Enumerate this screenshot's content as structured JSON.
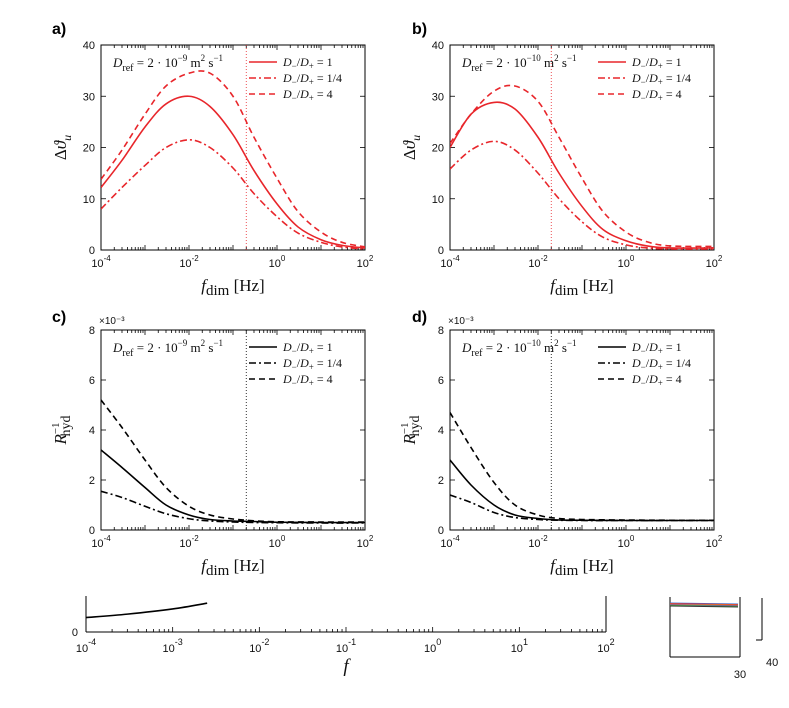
{
  "chart_data": [
    {
      "panel": "a)",
      "type": "line",
      "xscale": "log",
      "xlim": [
        0.0001,
        100
      ],
      "ylim": [
        0,
        40
      ],
      "yticks": [
        "0",
        "10",
        "20",
        "30",
        "40"
      ],
      "xlabel": "f_dim [Hz]",
      "ylabel": "Δϑ_u",
      "ref_label": "D_ref = 2·10⁻⁹ m² s⁻¹",
      "vline_x": 0.2,
      "color": "#e8262b",
      "series": [
        {
          "name": "D−/D+ = 1",
          "style": "solid",
          "x": [
            0.0001,
            0.0003,
            0.001,
            0.003,
            0.01,
            0.03,
            0.1,
            0.3,
            1,
            3,
            10,
            30,
            100
          ],
          "y": [
            12.2,
            17.5,
            24.0,
            28.5,
            30.0,
            28.0,
            22.5,
            15.5,
            9.0,
            4.5,
            2.0,
            0.9,
            0.4
          ]
        },
        {
          "name": "D−/D+ = 1/4",
          "style": "dashdot",
          "x": [
            0.0001,
            0.0003,
            0.001,
            0.003,
            0.01,
            0.03,
            0.1,
            0.3,
            1,
            3,
            10,
            30,
            100
          ],
          "y": [
            8.0,
            12.2,
            16.5,
            20.0,
            21.5,
            20.0,
            16.0,
            11.0,
            6.5,
            3.3,
            1.5,
            0.6,
            0.2
          ]
        },
        {
          "name": "D−/D+ = 4",
          "style": "dashed",
          "x": [
            0.0001,
            0.0003,
            0.001,
            0.003,
            0.01,
            0.03,
            0.1,
            0.3,
            1,
            3,
            10,
            30,
            100
          ],
          "y": [
            13.8,
            19.5,
            26.5,
            32.0,
            34.5,
            34.5,
            30.0,
            22.0,
            14.0,
            7.5,
            3.5,
            1.5,
            0.6
          ]
        }
      ]
    },
    {
      "panel": "b)",
      "type": "line",
      "xscale": "log",
      "xlim": [
        0.0001,
        100
      ],
      "ylim": [
        0,
        40
      ],
      "yticks": [
        "0",
        "10",
        "20",
        "30",
        "40"
      ],
      "xlabel": "f_dim [Hz]",
      "ylabel": "Δϑ_u",
      "ref_label": "D_ref = 2·10⁻¹⁰ m² s⁻¹",
      "vline_x": 0.02,
      "color": "#e8262b",
      "series": [
        {
          "name": "D−/D+ = 1",
          "style": "solid",
          "x": [
            0.0001,
            0.0003,
            0.001,
            0.003,
            0.01,
            0.03,
            0.1,
            0.3,
            1,
            3,
            10,
            100
          ],
          "y": [
            20.0,
            26.5,
            28.8,
            27.5,
            22.0,
            15.0,
            8.5,
            4.0,
            1.8,
            0.8,
            0.4,
            0.4
          ]
        },
        {
          "name": "D−/D+ = 1/4",
          "style": "dashdot",
          "x": [
            0.0001,
            0.0003,
            0.001,
            0.003,
            0.01,
            0.03,
            0.1,
            0.3,
            1,
            3,
            10,
            100
          ],
          "y": [
            15.8,
            19.5,
            21.2,
            19.5,
            15.0,
            10.0,
            5.5,
            2.5,
            1.0,
            0.4,
            0.2,
            0.2
          ]
        },
        {
          "name": "D−/D+ = 4",
          "style": "dashed",
          "x": [
            0.0001,
            0.0003,
            0.001,
            0.003,
            0.01,
            0.03,
            0.1,
            0.3,
            1,
            3,
            10,
            100
          ],
          "y": [
            20.8,
            26.5,
            31.0,
            32.0,
            29.0,
            22.0,
            14.0,
            7.5,
            3.5,
            1.6,
            0.8,
            0.7
          ]
        }
      ]
    },
    {
      "panel": "c)",
      "type": "line",
      "xscale": "log",
      "xlim": [
        0.0001,
        100
      ],
      "ylim": [
        0,
        0.008
      ],
      "yticks": [
        "0",
        "2",
        "4",
        "6",
        "8"
      ],
      "y_multiplier": "×10⁻³",
      "xlabel": "f_dim [Hz]",
      "ylabel": "R⁻¹_hyd",
      "ref_label": "D_ref = 2·10⁻⁹ m² s⁻¹",
      "vline_x": 0.2,
      "color": "#000000",
      "series": [
        {
          "name": "D−/D+ = 1",
          "style": "solid",
          "x": [
            0.0001,
            0.0003,
            0.001,
            0.003,
            0.01,
            0.03,
            0.1,
            0.3,
            1,
            10,
            100
          ],
          "y": [
            0.0032,
            0.0025,
            0.0017,
            0.001,
            0.0006,
            0.00042,
            0.00036,
            0.00034,
            0.00031,
            0.0003,
            0.0003
          ]
        },
        {
          "name": "D−/D+ = 1/4",
          "style": "dashdot",
          "x": [
            0.0001,
            0.0003,
            0.001,
            0.003,
            0.01,
            0.03,
            0.1,
            0.3,
            1,
            10,
            100
          ],
          "y": [
            0.00155,
            0.0013,
            0.00095,
            0.00065,
            0.00045,
            0.00036,
            0.00032,
            0.0003,
            0.00029,
            0.00028,
            0.00028
          ]
        },
        {
          "name": "D−/D+ = 4",
          "style": "dashed",
          "x": [
            0.0001,
            0.0003,
            0.001,
            0.003,
            0.01,
            0.03,
            0.1,
            0.3,
            1,
            10,
            100
          ],
          "y": [
            0.0052,
            0.0041,
            0.0028,
            0.0017,
            0.00095,
            0.0006,
            0.00044,
            0.00037,
            0.00033,
            0.00032,
            0.00032
          ]
        }
      ]
    },
    {
      "panel": "d)",
      "type": "line",
      "xscale": "log",
      "xlim": [
        0.0001,
        100
      ],
      "ylim": [
        0,
        0.008
      ],
      "yticks": [
        "0",
        "2",
        "4",
        "6",
        "8"
      ],
      "y_multiplier": "×10⁻³",
      "xlabel": "f_dim [Hz]",
      "ylabel": "R⁻¹_hyd",
      "ref_label": "D_ref = 2·10⁻¹⁰ m² s⁻¹",
      "vline_x": 0.02,
      "color": "#000000",
      "series": [
        {
          "name": "D−/D+ = 1",
          "style": "solid",
          "x": [
            0.0001,
            0.0003,
            0.001,
            0.003,
            0.01,
            0.03,
            0.1,
            1,
            10,
            100
          ],
          "y": [
            0.0028,
            0.0018,
            0.001,
            0.0006,
            0.00046,
            0.0004,
            0.00039,
            0.00038,
            0.00038,
            0.00038
          ]
        },
        {
          "name": "D−/D+ = 1/4",
          "style": "dashdot",
          "x": [
            0.0001,
            0.0003,
            0.001,
            0.003,
            0.01,
            0.03,
            0.1,
            1,
            10,
            100
          ],
          "y": [
            0.0014,
            0.0011,
            0.0007,
            0.0005,
            0.00042,
            0.00039,
            0.00038,
            0.00038,
            0.00038,
            0.00038
          ]
        },
        {
          "name": "D−/D+ = 4",
          "style": "dashed",
          "x": [
            0.0001,
            0.0003,
            0.001,
            0.003,
            0.01,
            0.03,
            0.1,
            1,
            10,
            100
          ],
          "y": [
            0.0047,
            0.0033,
            0.0019,
            0.001,
            0.0006,
            0.00046,
            0.00042,
            0.0004,
            0.00039,
            0.00039
          ]
        }
      ]
    },
    {
      "panel": "bottom-strip",
      "type": "line",
      "xscale": "log",
      "xlim": [
        0.0001,
        100
      ],
      "xticks": [
        "10⁻⁴",
        "10⁻³",
        "10⁻²",
        "10⁻¹",
        "10⁰",
        "10¹",
        "10²"
      ],
      "ytick_visible": "0",
      "xlabel": "f",
      "series": [
        {
          "name": "curve",
          "style": "solid",
          "x": [
            0.0001,
            0.0003,
            0.001,
            0.0025
          ],
          "y": [
            0.5,
            0.62,
            0.8,
            1.0
          ]
        }
      ]
    }
  ],
  "fragments": {
    "right_tick_30": "30",
    "right_tick_40": "40"
  },
  "axis_ticks": {
    "x_exponents": [
      "-4",
      "-2",
      "0",
      "2"
    ]
  }
}
